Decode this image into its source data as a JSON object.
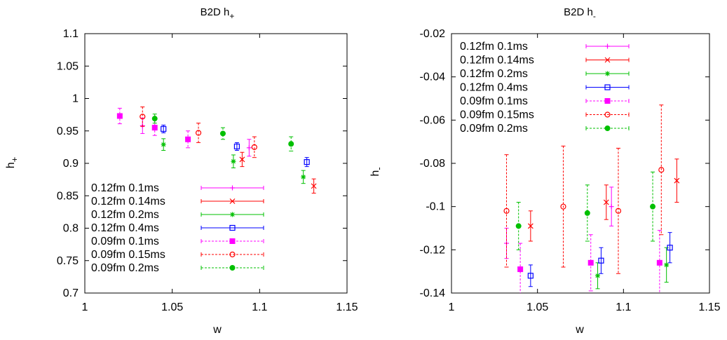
{
  "chart_data": [
    {
      "type": "scatter",
      "title": "B2D h",
      "title_sub": "+",
      "xlabel": "w",
      "ylabel": "h",
      "ylabel_sub": "+",
      "xlim": [
        1,
        1.15
      ],
      "ylim": [
        0.7,
        1.1
      ],
      "xticks": [
        "1",
        "1.05",
        "1.1",
        "1.15"
      ],
      "yticks": [
        "0.7",
        "0.75",
        "0.8",
        "0.85",
        "0.9",
        "0.95",
        "1",
        "1.05",
        "1.1"
      ],
      "legend_position": "bottom-left",
      "series": [
        {
          "name": "0.12fm 0.1ms",
          "color": "#ff00ff",
          "marker": "plus",
          "dashed": false,
          "points": [
            {
              "x": 1.033,
              "y": 0.958,
              "err": 0.012
            },
            {
              "x": 1.094,
              "y": 0.924,
              "err": 0.013
            }
          ]
        },
        {
          "name": "0.12fm 0.14ms",
          "color": "#ff0000",
          "marker": "cross",
          "dashed": false,
          "points": [
            {
              "x": 1.09,
              "y": 0.906,
              "err": 0.011
            },
            {
              "x": 1.131,
              "y": 0.865,
              "err": 0.011
            }
          ]
        },
        {
          "name": "0.12fm 0.2ms",
          "color": "#00c000",
          "marker": "star",
          "dashed": false,
          "points": [
            {
              "x": 1.045,
              "y": 0.929,
              "err": 0.009
            },
            {
              "x": 1.085,
              "y": 0.903,
              "err": 0.01
            },
            {
              "x": 1.125,
              "y": 0.879,
              "err": 0.01
            }
          ]
        },
        {
          "name": "0.12fm 0.4ms",
          "color": "#0000ff",
          "marker": "square-open",
          "dashed": false,
          "points": [
            {
              "x": 1.045,
              "y": 0.953,
              "err": 0.006
            },
            {
              "x": 1.087,
              "y": 0.926,
              "err": 0.006
            },
            {
              "x": 1.127,
              "y": 0.902,
              "err": 0.007
            }
          ]
        },
        {
          "name": "0.09fm 0.1ms",
          "color": "#ff00ff",
          "marker": "square-filled",
          "dashed": true,
          "points": [
            {
              "x": 1.02,
              "y": 0.973,
              "err": 0.012
            },
            {
              "x": 1.04,
              "y": 0.955,
              "err": 0.012
            },
            {
              "x": 1.059,
              "y": 0.937,
              "err": 0.013
            }
          ]
        },
        {
          "name": "0.09fm 0.15ms",
          "color": "#ff0000",
          "marker": "circle-open",
          "dashed": true,
          "points": [
            {
              "x": 1.033,
              "y": 0.972,
              "err": 0.015
            },
            {
              "x": 1.065,
              "y": 0.947,
              "err": 0.015
            },
            {
              "x": 1.097,
              "y": 0.925,
              "err": 0.016
            }
          ]
        },
        {
          "name": "0.09fm 0.2ms",
          "color": "#00c000",
          "marker": "circle-filled",
          "dashed": true,
          "points": [
            {
              "x": 1.04,
              "y": 0.969,
              "err": 0.007
            },
            {
              "x": 1.079,
              "y": 0.946,
              "err": 0.009
            },
            {
              "x": 1.118,
              "y": 0.93,
              "err": 0.011
            }
          ]
        }
      ]
    },
    {
      "type": "scatter",
      "title": "B2D h",
      "title_sub": "-",
      "xlabel": "w",
      "ylabel": "h",
      "ylabel_sub": "-",
      "xlim": [
        1,
        1.15
      ],
      "ylim": [
        -0.14,
        -0.02
      ],
      "xticks": [
        "1",
        "1.05",
        "1.1",
        "1.15"
      ],
      "yticks": [
        "-0.14",
        "-0.12",
        "-0.1",
        "-0.08",
        "-0.06",
        "-0.04",
        "-0.02"
      ],
      "legend_position": "top-left",
      "series": [
        {
          "name": "0.12fm 0.1ms",
          "color": "#ff00ff",
          "marker": "plus",
          "dashed": false,
          "points": [
            {
              "x": 1.032,
              "y": -0.117,
              "err": 0.007
            },
            {
              "x": 1.093,
              "y": -0.1,
              "err": 0.009
            }
          ]
        },
        {
          "name": "0.12fm 0.14ms",
          "color": "#ff0000",
          "marker": "cross",
          "dashed": false,
          "points": [
            {
              "x": 1.046,
              "y": -0.109,
              "err": 0.007
            },
            {
              "x": 1.09,
              "y": -0.098,
              "err": 0.008
            },
            {
              "x": 1.131,
              "y": -0.088,
              "err": 0.01
            }
          ]
        },
        {
          "name": "0.12fm 0.2ms",
          "color": "#00c000",
          "marker": "star",
          "dashed": false,
          "points": [
            {
              "x": 1.085,
              "y": -0.132,
              "err": 0.006
            },
            {
              "x": 1.125,
              "y": -0.127,
              "err": 0.008
            }
          ]
        },
        {
          "name": "0.12fm 0.4ms",
          "color": "#0000ff",
          "marker": "square-open",
          "dashed": false,
          "points": [
            {
              "x": 1.046,
              "y": -0.132,
              "err": 0.005
            },
            {
              "x": 1.087,
              "y": -0.125,
              "err": 0.006
            },
            {
              "x": 1.127,
              "y": -0.119,
              "err": 0.007
            }
          ]
        },
        {
          "name": "0.09fm 0.1ms",
          "color": "#ff00ff",
          "marker": "square-filled",
          "dashed": true,
          "points": [
            {
              "x": 1.04,
              "y": -0.129,
              "err": 0.012
            },
            {
              "x": 1.081,
              "y": -0.126,
              "err": 0.013
            },
            {
              "x": 1.121,
              "y": -0.126,
              "err": 0.015
            }
          ]
        },
        {
          "name": "0.09fm 0.15ms",
          "color": "#ff0000",
          "marker": "circle-open",
          "dashed": true,
          "points": [
            {
              "x": 1.032,
              "y": -0.102,
              "err": 0.026
            },
            {
              "x": 1.065,
              "y": -0.1,
              "err": 0.028
            },
            {
              "x": 1.097,
              "y": -0.102,
              "err": 0.029
            },
            {
              "x": 1.122,
              "y": -0.083,
              "err": 0.03
            }
          ]
        },
        {
          "name": "0.09fm 0.2ms",
          "color": "#00c000",
          "marker": "circle-filled",
          "dashed": true,
          "points": [
            {
              "x": 1.039,
              "y": -0.109,
              "err": 0.011
            },
            {
              "x": 1.079,
              "y": -0.103,
              "err": 0.013
            },
            {
              "x": 1.117,
              "y": -0.1,
              "err": 0.016
            }
          ]
        }
      ]
    }
  ]
}
